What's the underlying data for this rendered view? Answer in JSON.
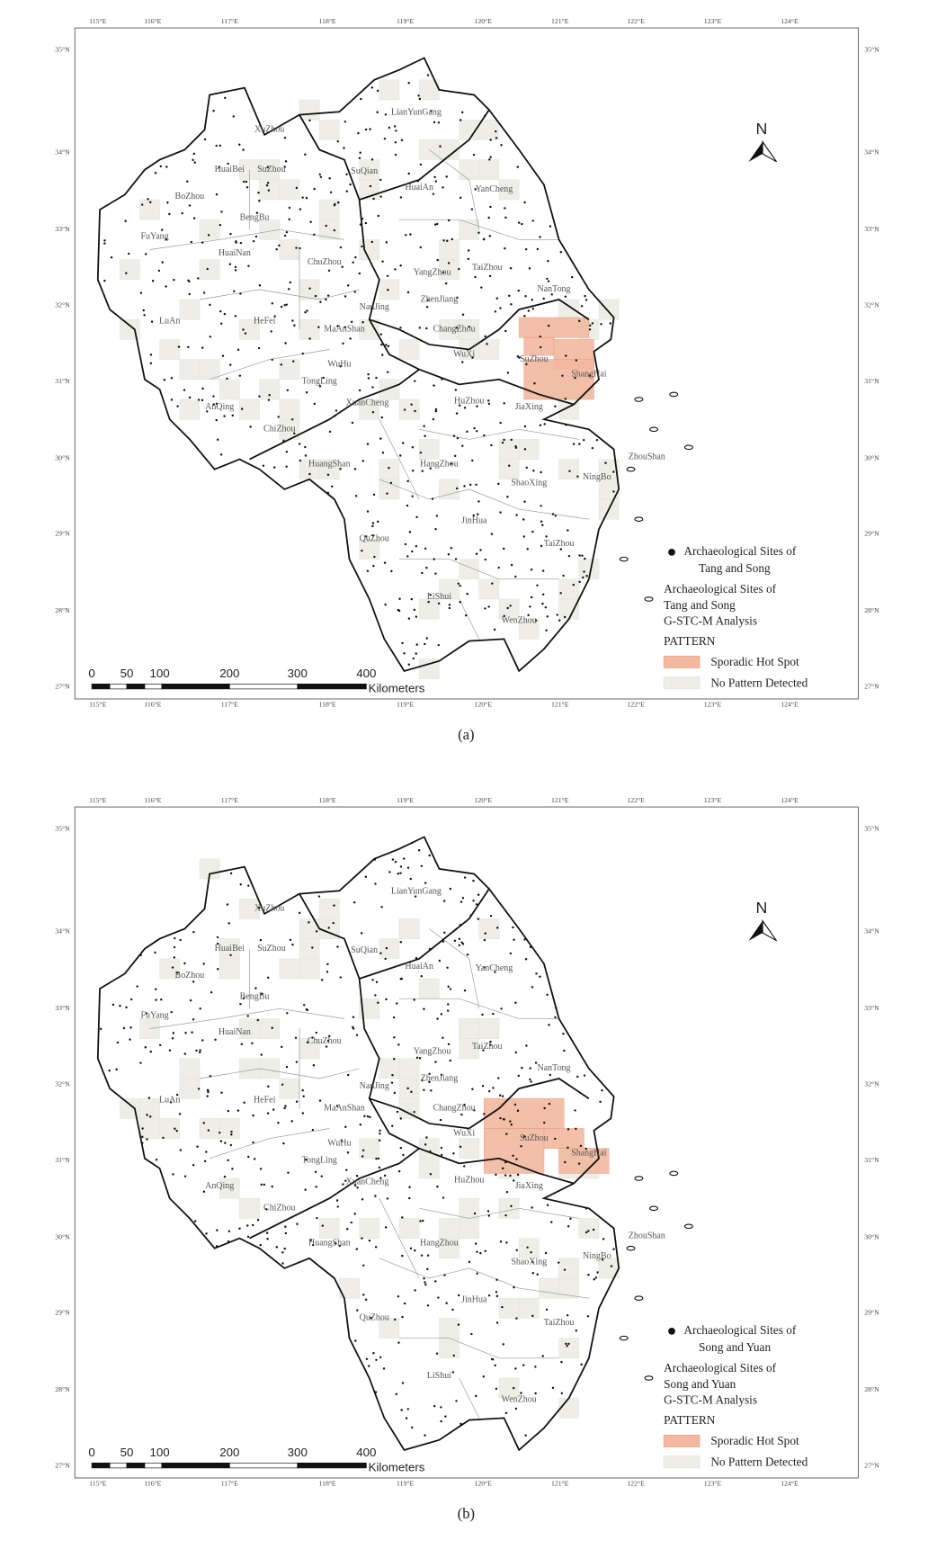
{
  "panels": [
    {
      "lon_labels": [
        "115°E",
        "116°E",
        "117°E",
        "118°E",
        "119°E",
        "120°E",
        "121°E",
        "122°E",
        "123°E",
        "124°E"
      ],
      "lat_labels": [
        "35°N",
        "34°N",
        "33°N",
        "32°N",
        "31°N",
        "30°N",
        "29°N",
        "28°N",
        "27°N"
      ],
      "cities": [
        "LianYunGang",
        "XuZhou",
        "HuaiBei",
        "SuZhou",
        "SuQian",
        "BoZhou",
        "HuaiAn",
        "YanCheng",
        "BengBu",
        "FuYang",
        "HuaiNan",
        "ChuZhou",
        "YangZhou",
        "TaiZhou",
        "NanTong",
        "NanJing",
        "ZhenJiang",
        "LuAn",
        "HeFei",
        "MaAnShan",
        "ChangZhou",
        "WuHu",
        "WuXi",
        "SuZhou",
        "ShangHai",
        "TongLing",
        "AnQing",
        "XuanCheng",
        "HuZhou",
        "JiaXing",
        "ChiZhou",
        "HuangShan",
        "HangZhou",
        "ZhouShan",
        "ShaoXing",
        "NingBo",
        "JinHua",
        "QuZhou",
        "TaiZhou",
        "LiShui",
        "WenZhou"
      ],
      "north": "N",
      "scale_labels": [
        "0",
        "50",
        "100",
        "200",
        "300",
        "400"
      ],
      "scale_unit": "Kilometers",
      "legend": {
        "point_label": [
          "Archaeological Sites of",
          "Tang and Song"
        ],
        "layer_title": [
          "Archaeological Sites of",
          "Tang and Song",
          "G-STC-M Analysis"
        ],
        "field": "PATTERN",
        "items": [
          "Sporadic Hot Spot",
          "No Pattern Detected"
        ]
      },
      "caption": "(a)"
    },
    {
      "lon_labels": [
        "115°E",
        "116°E",
        "117°E",
        "118°E",
        "119°E",
        "120°E",
        "121°E",
        "122°E",
        "123°E",
        "124°E"
      ],
      "lat_labels": [
        "35°N",
        "34°N",
        "33°N",
        "32°N",
        "31°N",
        "30°N",
        "29°N",
        "28°N",
        "27°N"
      ],
      "cities": [
        "LianYunGang",
        "XuZhou",
        "HuaiBei",
        "SuZhou",
        "SuQian",
        "BoZhou",
        "HuaiAn",
        "YanCheng",
        "BengBu",
        "FuYang",
        "HuaiNan",
        "ChuZhou",
        "YangZhou",
        "TaiZhou",
        "NanTong",
        "NanJing",
        "ZhenJiang",
        "LuAn",
        "HeFei",
        "MaAnShan",
        "ChangZhou",
        "WuHu",
        "WuXi",
        "SuZhou",
        "ShangHai",
        "TongLing",
        "AnQing",
        "XuanCheng",
        "HuZhou",
        "JiaXing",
        "ChiZhou",
        "HuangShan",
        "HangZhou",
        "ZhouShan",
        "ShaoXing",
        "NingBo",
        "JinHua",
        "QuZhou",
        "TaiZhou",
        "LiShui",
        "WenZhou"
      ],
      "north": "N",
      "scale_labels": [
        "0",
        "50",
        "100",
        "200",
        "300",
        "400"
      ],
      "scale_unit": "Kilometers",
      "legend": {
        "point_label": [
          "Archaeological Sites of",
          "Song and Yuan"
        ],
        "layer_title": [
          "Archaeological Sites of",
          "Song and Yuan",
          "G-STC-M Analysis"
        ],
        "field": "PATTERN",
        "items": [
          "Sporadic Hot Spot",
          "No Pattern Detected"
        ]
      },
      "caption": "(b)"
    }
  ]
}
